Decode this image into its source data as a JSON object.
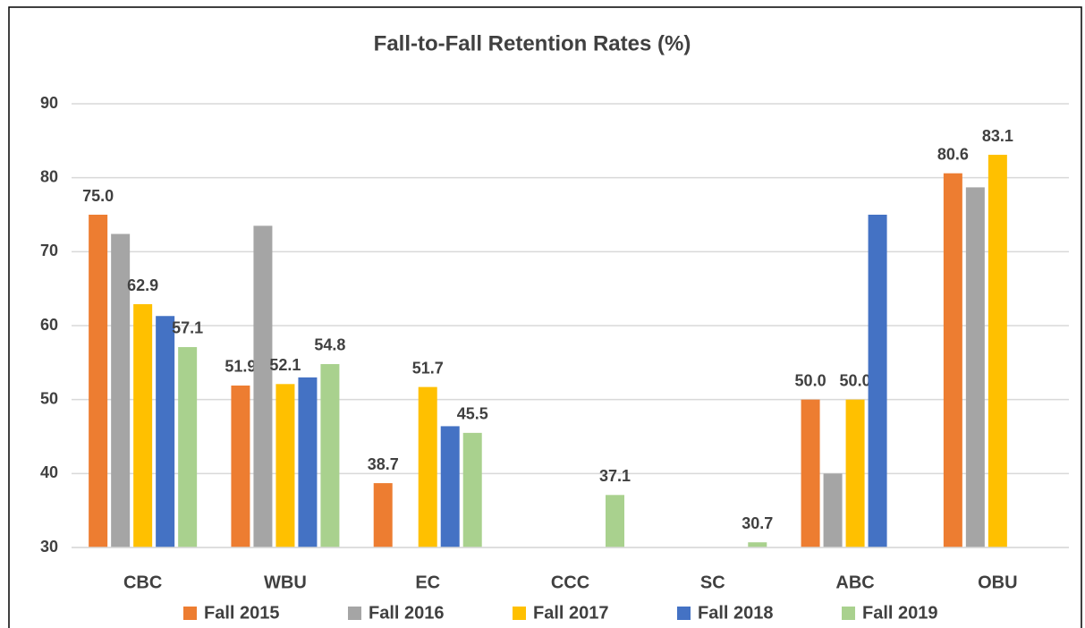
{
  "chart_data": {
    "type": "bar",
    "title": "Fall-to-Fall Retention Rates (%)",
    "categories": [
      "CBC",
      "WBU",
      "EC",
      "CCC",
      "SC",
      "ABC",
      "OBU"
    ],
    "series": [
      {
        "name": "Fall 2015",
        "color": "#ed7d31",
        "values": [
          75.0,
          51.9,
          38.7,
          null,
          null,
          50.0,
          80.6
        ],
        "value_labels": [
          "75.0",
          "51.9",
          "38.7",
          null,
          null,
          "50.0",
          "80.6"
        ]
      },
      {
        "name": "Fall 2016",
        "color": "#a5a5a5",
        "values": [
          72.4,
          73.5,
          null,
          null,
          null,
          40.0,
          78.7
        ]
      },
      {
        "name": "Fall 2017",
        "color": "#ffc000",
        "values": [
          62.9,
          52.1,
          51.7,
          null,
          null,
          50.0,
          83.1
        ],
        "value_labels": [
          "62.9",
          "52.1",
          "51.7",
          null,
          null,
          "50.0",
          "83.1"
        ]
      },
      {
        "name": "Fall 2018",
        "color": "#4472c4",
        "values": [
          61.3,
          53.0,
          46.4,
          null,
          null,
          75.0,
          null
        ]
      },
      {
        "name": "Fall 2019",
        "color": "#a9d18e",
        "values": [
          57.1,
          54.8,
          45.5,
          37.1,
          30.7,
          null,
          null
        ],
        "value_labels": [
          "57.1",
          "54.8",
          "45.5",
          "37.1",
          "30.7",
          null,
          null
        ]
      }
    ],
    "ylim": [
      30,
      90
    ],
    "yticks": [
      30,
      40,
      50,
      60,
      70,
      80,
      90
    ],
    "grid": true,
    "legend": "bottom"
  }
}
